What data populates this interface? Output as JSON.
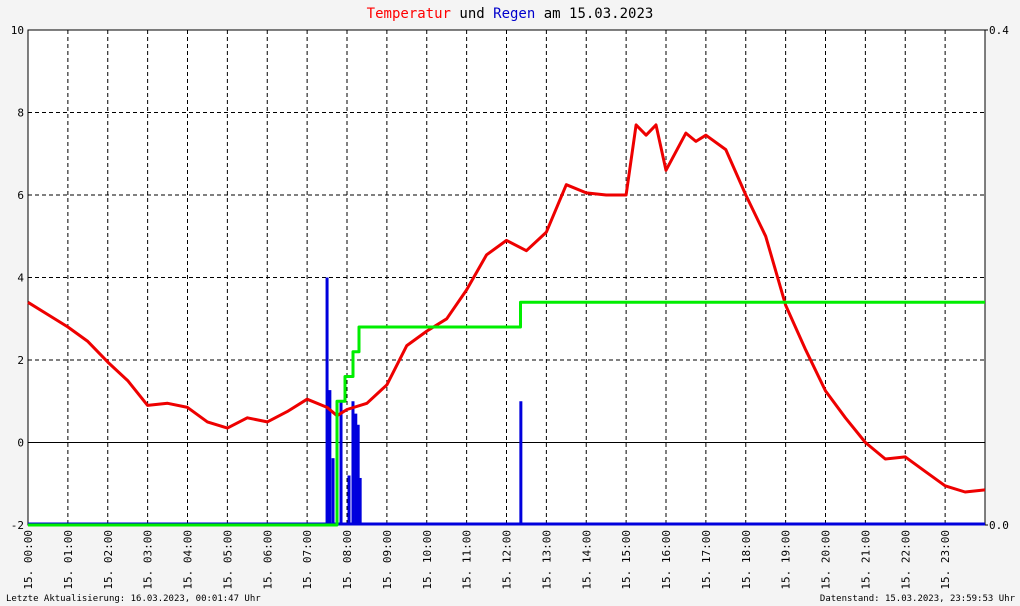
{
  "chart_data": {
    "type": "line",
    "title": [
      {
        "text": "Temperatur",
        "color": "#ff0000"
      },
      {
        "text": "und",
        "color": "#000000"
      },
      {
        "text": "Regen",
        "color": "#0000cc"
      },
      {
        "text": "am 15.03.2023",
        "color": "#000000"
      }
    ],
    "xlim": [
      0,
      24
    ],
    "xticks": [
      {
        "value": 0,
        "label": "15. 00:00"
      },
      {
        "value": 1,
        "label": "15. 01:00"
      },
      {
        "value": 2,
        "label": "15. 02:00"
      },
      {
        "value": 3,
        "label": "15. 03:00"
      },
      {
        "value": 4,
        "label": "15. 04:00"
      },
      {
        "value": 5,
        "label": "15. 05:00"
      },
      {
        "value": 6,
        "label": "15. 06:00"
      },
      {
        "value": 7,
        "label": "15. 07:00"
      },
      {
        "value": 8,
        "label": "15. 08:00"
      },
      {
        "value": 9,
        "label": "15. 09:00"
      },
      {
        "value": 10,
        "label": "15. 10:00"
      },
      {
        "value": 11,
        "label": "15. 11:00"
      },
      {
        "value": 12,
        "label": "15. 12:00"
      },
      {
        "value": 13,
        "label": "15. 13:00"
      },
      {
        "value": 14,
        "label": "15. 14:00"
      },
      {
        "value": 15,
        "label": "15. 15:00"
      },
      {
        "value": 16,
        "label": "15. 16:00"
      },
      {
        "value": 17,
        "label": "15. 17:00"
      },
      {
        "value": 18,
        "label": "15. 18:00"
      },
      {
        "value": 19,
        "label": "15. 19:00"
      },
      {
        "value": 20,
        "label": "15. 20:00"
      },
      {
        "value": 21,
        "label": "15. 21:00"
      },
      {
        "value": 22,
        "label": "15. 22:00"
      },
      {
        "value": 23,
        "label": "15. 23:00"
      }
    ],
    "ylim": [
      -2,
      10
    ],
    "yticks": [
      -2,
      0,
      2,
      4,
      6,
      8,
      10
    ],
    "y2lim": [
      0,
      0.4
    ],
    "y2ticks": [
      {
        "value": 0,
        "label": "0.0"
      },
      0.4
    ],
    "grid": true,
    "series": [
      {
        "type": "line",
        "color": "#ee0000",
        "x": [
          0,
          0.5,
          1,
          1.5,
          2,
          2.5,
          3,
          3.5,
          4,
          4.5,
          5,
          5.5,
          6,
          6.5,
          7,
          7.5,
          7.75,
          8,
          8.5,
          9,
          9.5,
          10,
          10.5,
          11,
          11.5,
          12,
          12.5,
          13,
          13.5,
          14,
          14.5,
          15,
          15.25,
          15.5,
          15.75,
          16,
          16.5,
          16.75,
          17,
          17.5,
          18,
          18.5,
          19,
          19.5,
          20,
          20.5,
          21,
          21.5,
          22,
          22.5,
          23,
          23.5,
          24
        ],
        "values": [
          3.4,
          3.1,
          2.8,
          2.45,
          1.95,
          1.5,
          0.9,
          0.95,
          0.85,
          0.5,
          0.35,
          0.6,
          0.5,
          0.75,
          1.05,
          0.85,
          0.65,
          0.8,
          0.95,
          1.4,
          2.35,
          2.7,
          3.0,
          3.7,
          4.55,
          4.9,
          4.65,
          5.1,
          6.25,
          6.05,
          6.0,
          6.0,
          7.7,
          7.45,
          7.7,
          6.6,
          7.5,
          7.3,
          7.45,
          7.1,
          6.0,
          5.0,
          3.33,
          2.25,
          1.25,
          0.6,
          0.0,
          -0.4,
          -0.35,
          -0.7,
          -1.05,
          -1.2,
          -1.15
        ]
      },
      {
        "type": "line",
        "color": "#00ee00",
        "axis": "y2",
        "x": [
          0,
          7.75,
          7.75,
          7.95,
          7.95,
          8.15,
          8.15,
          8.3,
          8.3,
          12.35,
          12.35,
          24
        ],
        "values": [
          0,
          0,
          0.1,
          0.1,
          0.12,
          0.12,
          0.14,
          0.14,
          0.16,
          0.16,
          0.18,
          0.18
        ]
      },
      {
        "type": "bar",
        "color": "#0000dd",
        "axis": "y2",
        "x": [
          7.5,
          7.57,
          7.65,
          7.75,
          7.85,
          8.05,
          8.15,
          8.22,
          8.28,
          8.33,
          12.36
        ],
        "values": [
          0.2,
          0.109,
          0.054,
          0.1,
          0.1,
          0.04,
          0.1,
          0.09,
          0.081,
          0.038,
          0.1
        ]
      }
    ],
    "footer_left": "Letzte Aktualisierung: 16.03.2023, 00:01:47 Uhr",
    "footer_right": "Datenstand: 15.03.2023, 23:59:53 Uhr"
  }
}
